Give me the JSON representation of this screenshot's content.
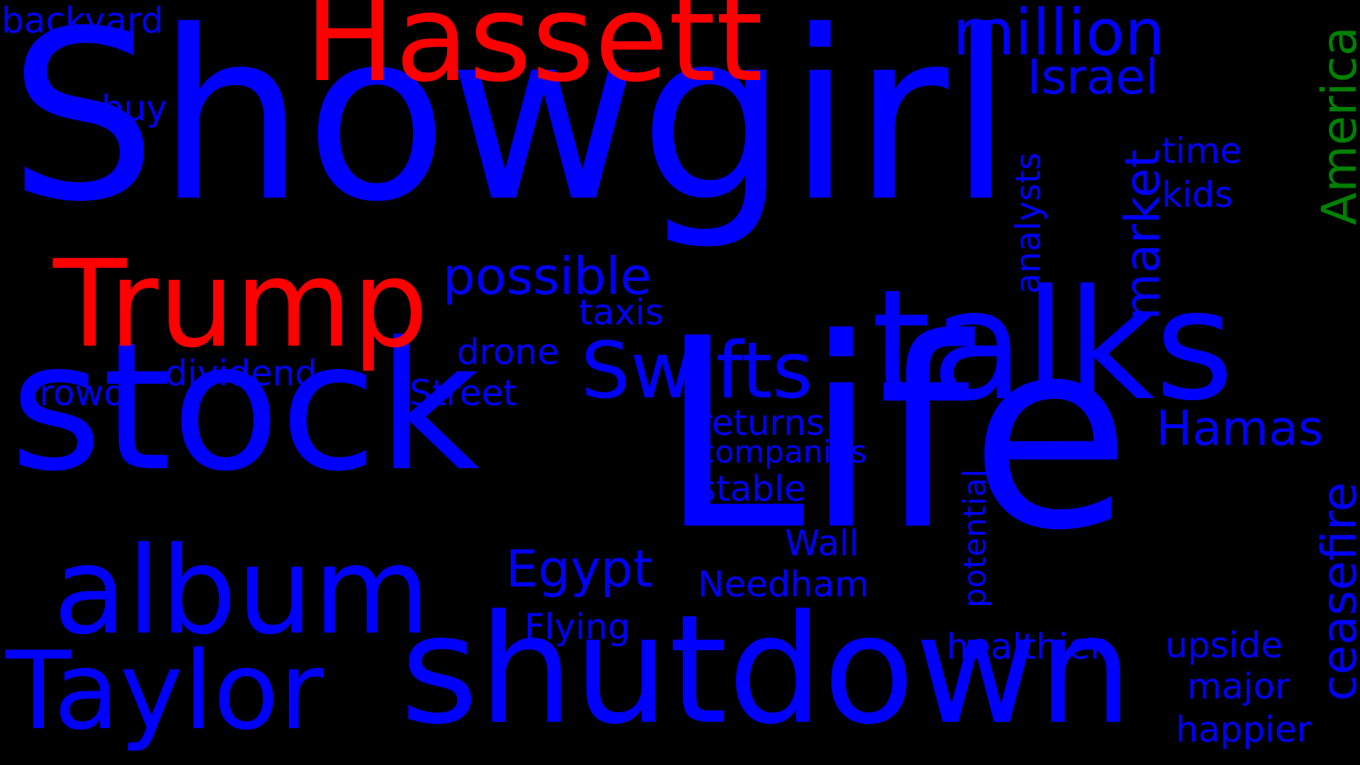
{
  "colors": {
    "background": "#000000",
    "blue": "#0000ff",
    "red": "#ff0000",
    "green": "#008000"
  },
  "words": [
    {
      "id": "showgirl",
      "text": "Showgirl",
      "color": "red_blue"
    },
    {
      "id": "stock",
      "text": "stock"
    },
    {
      "id": "life",
      "text": "Life"
    },
    {
      "id": "shutdown",
      "text": "shutdown"
    },
    {
      "id": "talks",
      "text": "talks"
    },
    {
      "id": "hassett",
      "text": "Hassett"
    },
    {
      "id": "trump",
      "text": "Trump"
    },
    {
      "id": "album",
      "text": "album"
    },
    {
      "id": "taylor",
      "text": "Taylor"
    },
    {
      "id": "swifts",
      "text": "Swifts"
    },
    {
      "id": "million",
      "text": "million"
    },
    {
      "id": "israel",
      "text": "Israel"
    },
    {
      "id": "america",
      "text": "America"
    },
    {
      "id": "possible",
      "text": "possible"
    },
    {
      "id": "market",
      "text": "market"
    },
    {
      "id": "analysts",
      "text": "analysts"
    },
    {
      "id": "time",
      "text": "time"
    },
    {
      "id": "kids",
      "text": "kids"
    },
    {
      "id": "hamas",
      "text": "Hamas"
    },
    {
      "id": "ceasefire",
      "text": "ceasefire"
    },
    {
      "id": "egypt",
      "text": "Egypt"
    },
    {
      "id": "backyard",
      "text": "backyard"
    },
    {
      "id": "buy",
      "text": "buy"
    },
    {
      "id": "taxis",
      "text": "taxis"
    },
    {
      "id": "drone",
      "text": "drone"
    },
    {
      "id": "dividend",
      "text": "dividend"
    },
    {
      "id": "crowd",
      "text": "crowd"
    },
    {
      "id": "street",
      "text": "Street"
    },
    {
      "id": "returns",
      "text": "returns"
    },
    {
      "id": "companies",
      "text": "companies"
    },
    {
      "id": "stable",
      "text": "stable"
    },
    {
      "id": "potential",
      "text": "potential"
    },
    {
      "id": "wall",
      "text": "Wall"
    },
    {
      "id": "needham",
      "text": "Needham"
    },
    {
      "id": "flying",
      "text": "Flying"
    },
    {
      "id": "healthier",
      "text": "healthier"
    },
    {
      "id": "upside",
      "text": "upside"
    },
    {
      "id": "major",
      "text": "major"
    },
    {
      "id": "happier",
      "text": "happier"
    }
  ]
}
